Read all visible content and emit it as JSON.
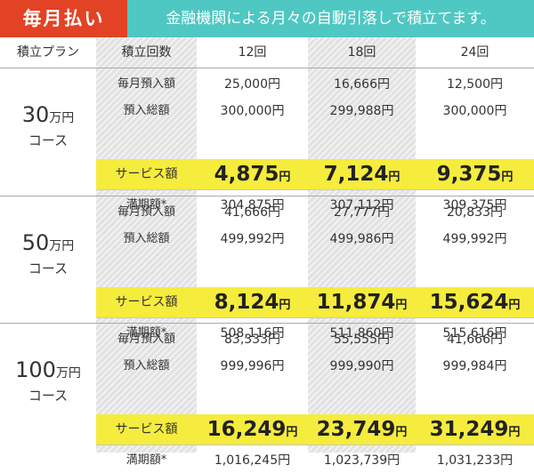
{
  "header": {
    "badge": "毎月払い",
    "description": "金融機関による月々の自動引落しで積立てます。"
  },
  "table": {
    "plan_header": "積立プラン",
    "count_header": "積立回数",
    "columns": [
      "12回",
      "18回",
      "24回"
    ],
    "row_labels": {
      "monthly": "毎月預入額",
      "total": "預入総額",
      "service": "サービス額",
      "maturity": "満期額*"
    },
    "yen": "円",
    "courses": [
      {
        "amount": "30",
        "unit": "万円",
        "course": "コース",
        "monthly": [
          "25,000円",
          "16,666円",
          "12,500円"
        ],
        "total": [
          "300,000円",
          "299,988円",
          "300,000円"
        ],
        "service": [
          "4,875",
          "7,124",
          "9,375"
        ],
        "maturity": [
          "304,875円",
          "307,112円",
          "309,375円"
        ]
      },
      {
        "amount": "50",
        "unit": "万円",
        "course": "コース",
        "monthly": [
          "41,666円",
          "27,777円",
          "20,833円"
        ],
        "total": [
          "499,992円",
          "499,986円",
          "499,992円"
        ],
        "service": [
          "8,124",
          "11,874",
          "15,624"
        ],
        "maturity": [
          "508,116円",
          "511,860円",
          "515,616円"
        ]
      },
      {
        "amount": "100",
        "unit": "万円",
        "course": "コース",
        "monthly": [
          "83,333円",
          "55,555円",
          "41,666円"
        ],
        "total": [
          "999,996円",
          "999,990円",
          "999,984円"
        ],
        "service": [
          "16,249",
          "23,749",
          "31,249"
        ],
        "maturity": [
          "1,016,245円",
          "1,023,739円",
          "1,031,233円"
        ]
      }
    ]
  }
}
